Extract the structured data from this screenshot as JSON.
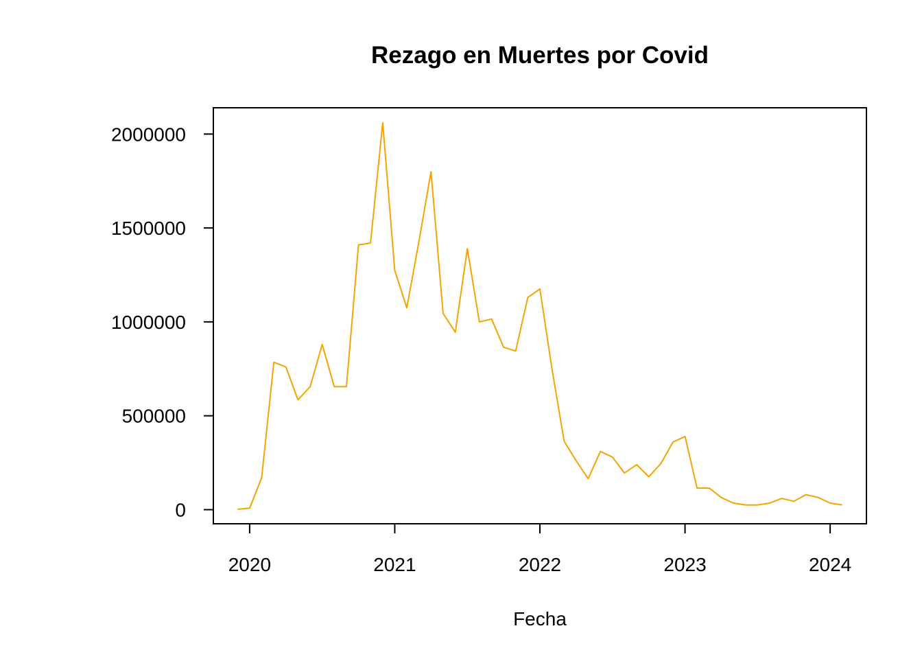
{
  "chart_data": {
    "type": "line",
    "title": "Rezago en Muertes por Covid",
    "xlabel": "Fecha",
    "ylabel": "",
    "x_ticks": [
      "2020",
      "2021",
      "2022",
      "2023",
      "2024"
    ],
    "y_ticks": [
      "0",
      "500000",
      "1000000",
      "1500000",
      "2000000"
    ],
    "xlim": [
      2019.75,
      2024.25
    ],
    "ylim": [
      -75000,
      2140000
    ],
    "grid": false,
    "legend": "none",
    "line_color": "#F5A300",
    "series": [
      {
        "x": [
          2019.917,
          2020.0,
          2020.083,
          2020.167,
          2020.25,
          2020.333,
          2020.417,
          2020.5,
          2020.583,
          2020.667,
          2020.75,
          2020.833,
          2020.917,
          2021.0,
          2021.083,
          2021.167,
          2021.25,
          2021.333,
          2021.417,
          2021.5,
          2021.583,
          2021.667,
          2021.75,
          2021.833,
          2021.917,
          2022.0,
          2022.083,
          2022.167,
          2022.25,
          2022.333,
          2022.417,
          2022.5,
          2022.583,
          2022.667,
          2022.75,
          2022.833,
          2022.917,
          2023.0,
          2023.083,
          2023.167,
          2023.25,
          2023.333,
          2023.417,
          2023.5,
          2023.583,
          2023.667,
          2023.75,
          2023.833,
          2023.917,
          2024.0,
          2024.083
        ],
        "values": [
          2000,
          8000,
          170000,
          785000,
          760000,
          585000,
          655000,
          880000,
          655000,
          655000,
          1410000,
          1420000,
          2060000,
          1275000,
          1075000,
          1430000,
          1800000,
          1045000,
          945000,
          1390000,
          1000000,
          1015000,
          865000,
          845000,
          1130000,
          1175000,
          750000,
          365000,
          260000,
          165000,
          310000,
          280000,
          195000,
          240000,
          175000,
          245000,
          360000,
          390000,
          115000,
          115000,
          65000,
          35000,
          25000,
          25000,
          35000,
          60000,
          45000,
          80000,
          65000,
          35000,
          25000
        ]
      }
    ]
  }
}
